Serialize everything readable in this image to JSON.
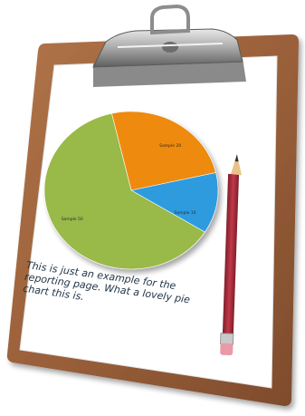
{
  "chart_data": {
    "type": "pie",
    "slices": [
      {
        "label": "Sample 20",
        "value": 20,
        "color": "#ee8a0c"
      },
      {
        "label": "Sample 10",
        "value": 10,
        "color": "#2f9bdf"
      },
      {
        "label": "Sample 50",
        "value": 50,
        "color": "#99b94a"
      }
    ]
  },
  "caption": {
    "lines": [
      "This is just an example for the",
      "reporting page.  What a lovely pie",
      "chart this is."
    ]
  },
  "colors": {
    "clipboard": "#9a623a",
    "clip": "#b8b8b8",
    "paper": "#ffffff",
    "pencil": "#b12c3c"
  }
}
